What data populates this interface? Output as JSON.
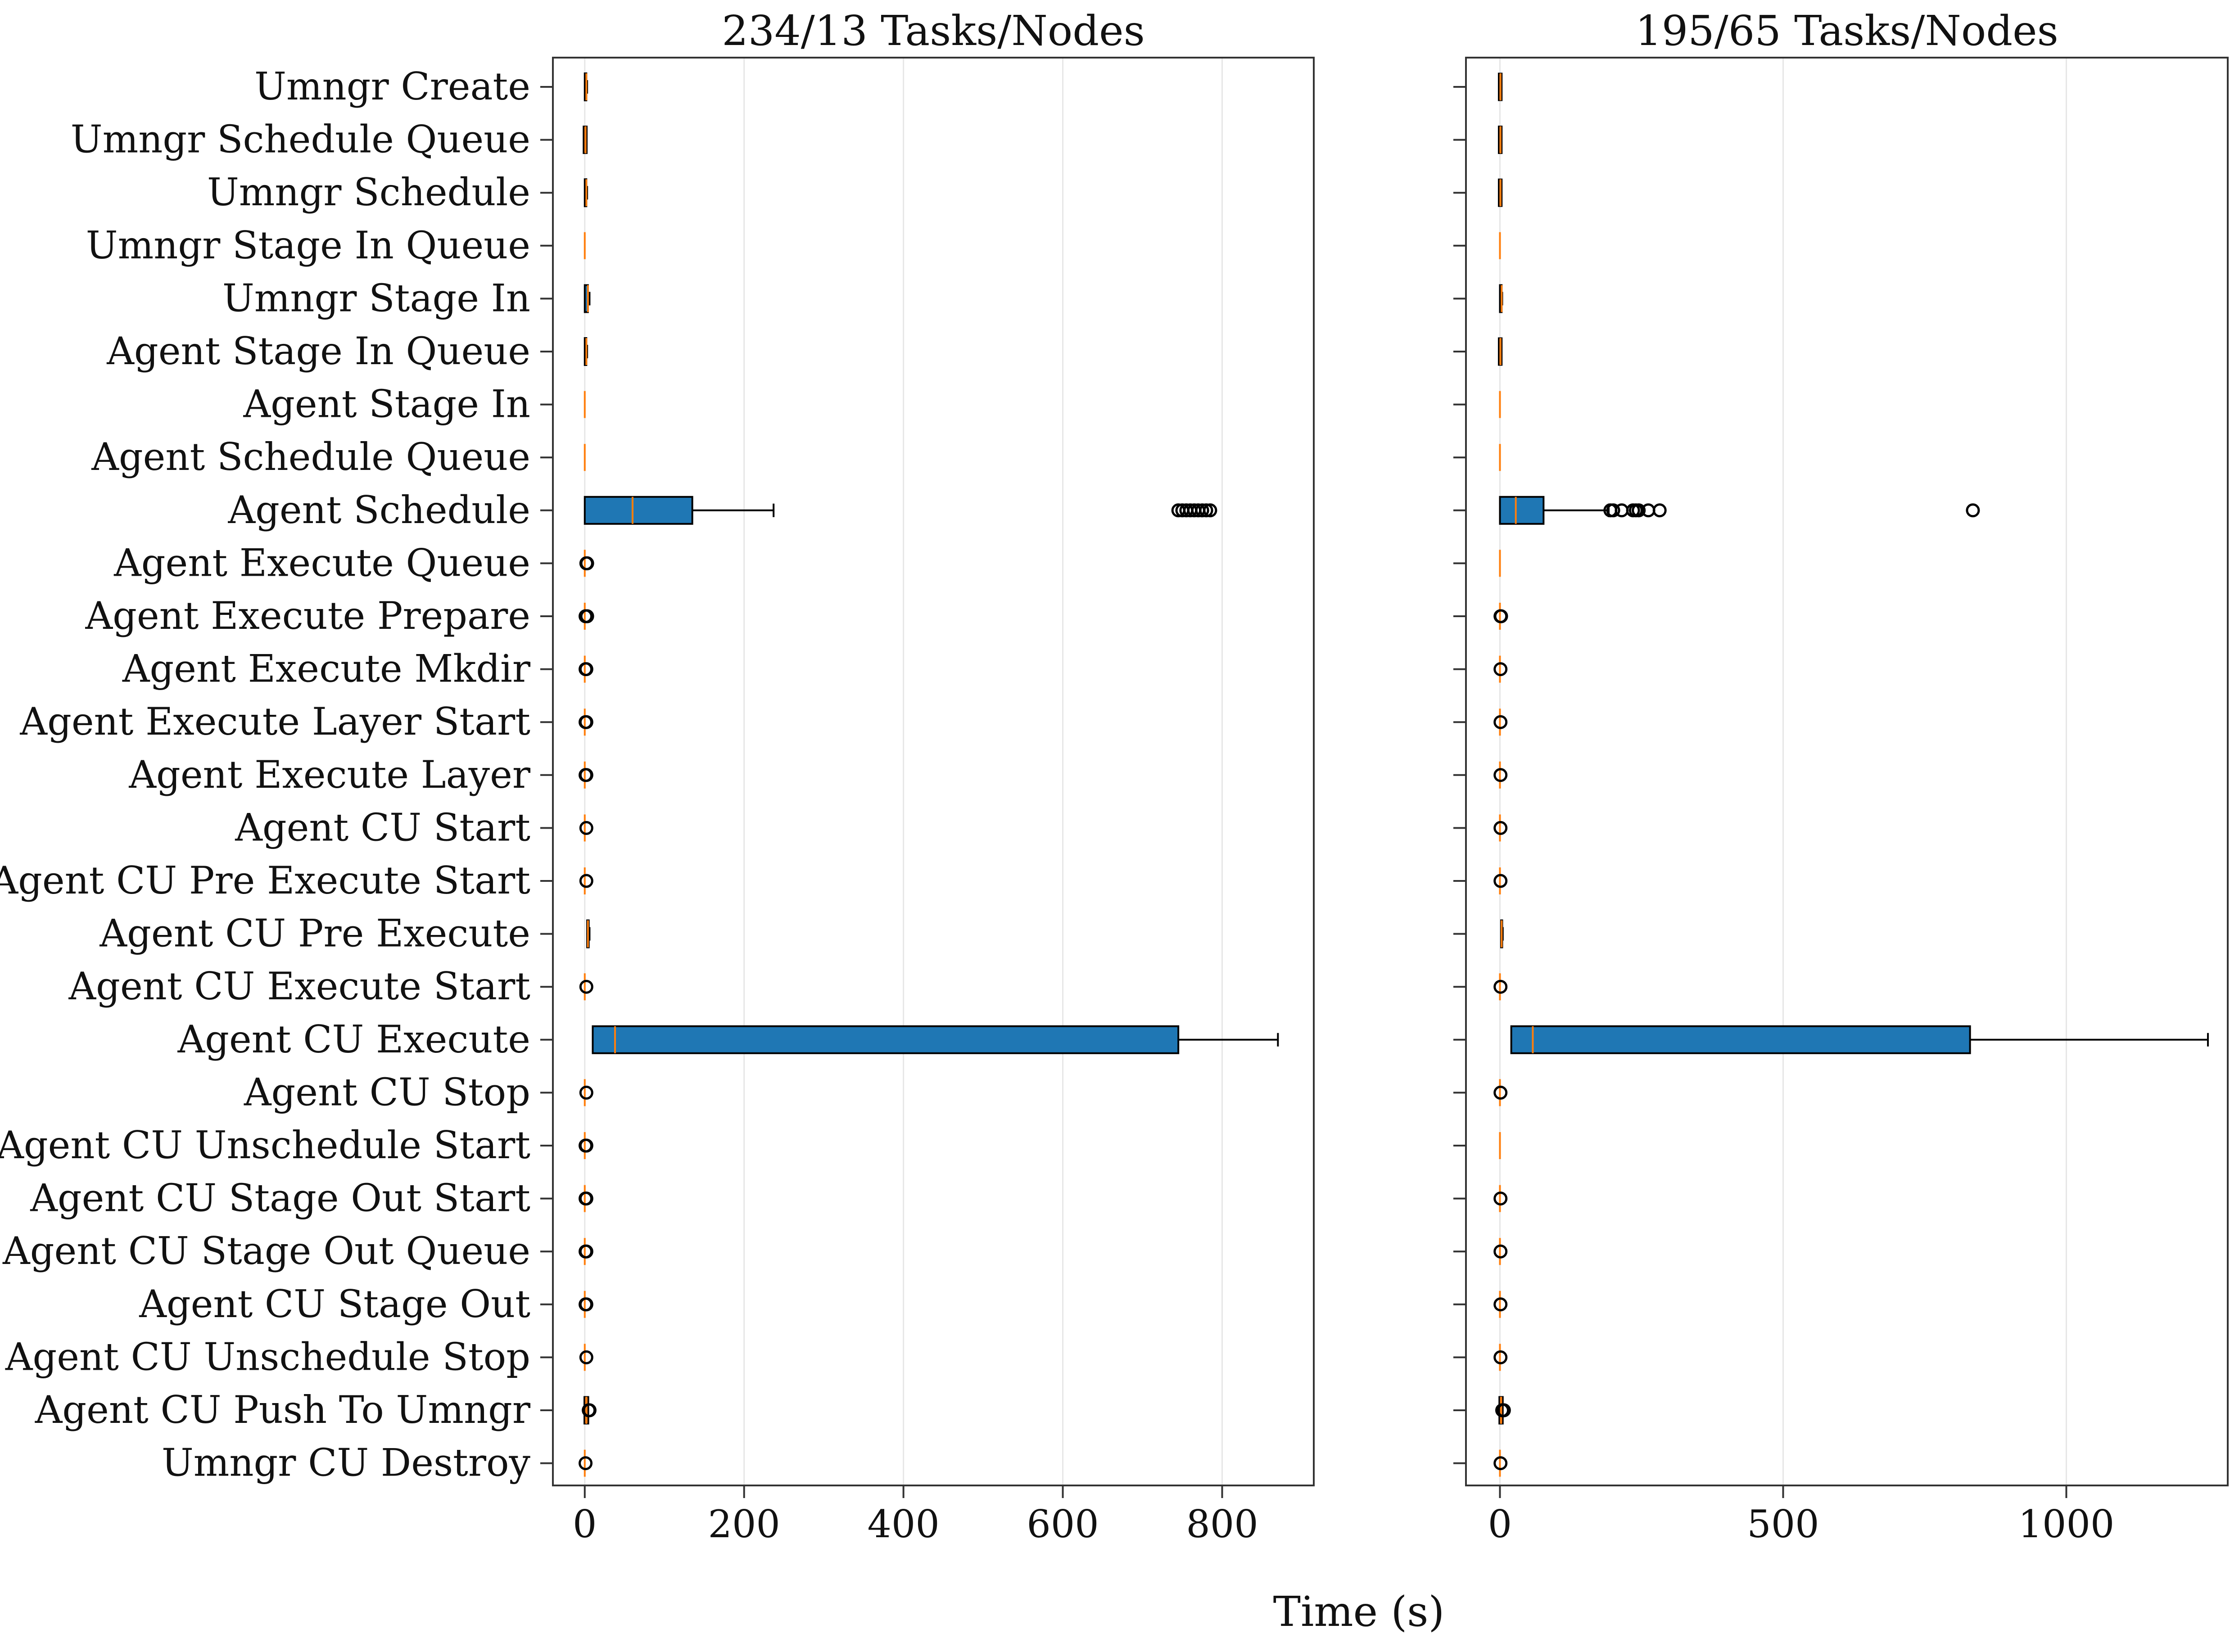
{
  "chart_data": {
    "type": "boxplot",
    "xlabel": "Time (s)",
    "categories": [
      "Umngr Create",
      "Umngr Schedule Queue",
      "Umngr Schedule",
      "Umngr Stage In Queue",
      "Umngr Stage In",
      "Agent Stage In Queue",
      "Agent Stage In",
      "Agent Schedule Queue",
      "Agent Schedule",
      "Agent Execute Queue",
      "Agent Execute Prepare",
      "Agent Execute Mkdir",
      "Agent Execute Layer Start",
      "Agent Execute Layer",
      "Agent CU Start",
      "Agent CU Pre Execute Start",
      "Agent CU Pre Execute",
      "Agent CU Execute Start",
      "Agent CU Execute",
      "Agent CU Stop",
      "Agent CU Unschedule Start",
      "Agent CU Stage Out Start",
      "Agent CU Stage Out Queue",
      "Agent CU Stage Out",
      "Agent CU Unschedule Stop",
      "Agent CU Push To Umngr",
      "Umngr CU Destroy"
    ],
    "colors": {
      "box": "#1f77b4",
      "median": "#ff7f0e",
      "grid": "#e6e6e6"
    },
    "grid": "vertical",
    "panels": [
      {
        "title": "234/13 Tasks/Nodes",
        "xlim": [
          -40,
          915
        ],
        "xticks": [
          0,
          200,
          400,
          600,
          800
        ],
        "boxes": [
          {
            "min": 0,
            "q1": 0,
            "median": 2,
            "q3": 2,
            "max": 3,
            "outliers": []
          },
          {
            "min": 0,
            "q1": 0,
            "median": 1,
            "q3": 1,
            "max": 1,
            "outliers": []
          },
          {
            "min": 0,
            "q1": 0,
            "median": 2,
            "q3": 2,
            "max": 3,
            "outliers": []
          },
          {
            "min": 0,
            "q1": 0,
            "median": 0,
            "q3": 0,
            "max": 0,
            "outliers": []
          },
          {
            "min": 0,
            "q1": 0,
            "median": 4,
            "q3": 4,
            "max": 6,
            "outliers": []
          },
          {
            "min": 0,
            "q1": 0,
            "median": 2,
            "q3": 2,
            "max": 3,
            "outliers": []
          },
          {
            "min": 0,
            "q1": 0,
            "median": 0,
            "q3": 0,
            "max": 0,
            "outliers": []
          },
          {
            "min": 0,
            "q1": 0,
            "median": 0,
            "q3": 0,
            "max": 0,
            "outliers": []
          },
          {
            "min": 0,
            "q1": 0,
            "median": 60,
            "q3": 135,
            "max": 237,
            "outliers": [
              745,
              750,
              755,
              760,
              765,
              770,
              775,
              780,
              785
            ]
          },
          {
            "min": 0,
            "q1": 0,
            "median": 0,
            "q3": 0,
            "max": 0,
            "outliers": [
              2,
              3
            ]
          },
          {
            "min": 0,
            "q1": 0,
            "median": 0,
            "q3": 0,
            "max": 0,
            "outliers": [
              1,
              2,
              3
            ]
          },
          {
            "min": 0,
            "q1": 0,
            "median": 0,
            "q3": 0,
            "max": 0,
            "outliers": [
              1,
              2
            ]
          },
          {
            "min": 0,
            "q1": 0,
            "median": 0,
            "q3": 0,
            "max": 0,
            "outliers": [
              1,
              2
            ]
          },
          {
            "min": 0,
            "q1": 0,
            "median": 0,
            "q3": 0,
            "max": 0,
            "outliers": [
              1,
              2
            ]
          },
          {
            "min": 0,
            "q1": 0,
            "median": 0,
            "q3": 0,
            "max": 0,
            "outliers": [
              2
            ]
          },
          {
            "min": 0,
            "q1": 0,
            "median": 0,
            "q3": 0,
            "max": 0,
            "outliers": [
              2
            ]
          },
          {
            "min": 2,
            "q1": 3,
            "median": 4,
            "q3": 5,
            "max": 6,
            "outliers": []
          },
          {
            "min": 0,
            "q1": 0,
            "median": 0,
            "q3": 0,
            "max": 0,
            "outliers": [
              2
            ]
          },
          {
            "min": 10,
            "q1": 10,
            "median": 38,
            "q3": 745,
            "max": 870,
            "outliers": []
          },
          {
            "min": 0,
            "q1": 0,
            "median": 0,
            "q3": 0,
            "max": 0,
            "outliers": [
              2
            ]
          },
          {
            "min": 0,
            "q1": 0,
            "median": 0,
            "q3": 0,
            "max": 0,
            "outliers": [
              1,
              2
            ]
          },
          {
            "min": 0,
            "q1": 0,
            "median": 0,
            "q3": 0,
            "max": 0,
            "outliers": [
              1,
              2
            ]
          },
          {
            "min": 0,
            "q1": 0,
            "median": 0,
            "q3": 0,
            "max": 0,
            "outliers": [
              1,
              2
            ]
          },
          {
            "min": 0,
            "q1": 0,
            "median": 0,
            "q3": 0,
            "max": 0,
            "outliers": [
              1,
              2
            ]
          },
          {
            "min": 0,
            "q1": 0,
            "median": 0,
            "q3": 0,
            "max": 0,
            "outliers": [
              2
            ]
          },
          {
            "min": 1,
            "q1": 1,
            "median": 2,
            "q3": 2,
            "max": 3,
            "outliers": [
              5,
              6
            ]
          },
          {
            "min": 0,
            "q1": 0,
            "median": 0,
            "q3": 0,
            "max": 0,
            "outliers": [
              1
            ]
          }
        ]
      },
      {
        "title": "195/65 Tasks/Nodes",
        "xlim": [
          -60,
          1285
        ],
        "xticks": [
          0,
          500,
          1000
        ],
        "boxes": [
          {
            "min": 0,
            "q1": 0,
            "median": 1,
            "q3": 1,
            "max": 1,
            "outliers": []
          },
          {
            "min": 0,
            "q1": 0,
            "median": 1,
            "q3": 1,
            "max": 1,
            "outliers": []
          },
          {
            "min": 0,
            "q1": 0,
            "median": 1,
            "q3": 1,
            "max": 1,
            "outliers": []
          },
          {
            "min": 0,
            "q1": 0,
            "median": 0,
            "q3": 0,
            "max": 0,
            "outliers": []
          },
          {
            "min": 0,
            "q1": 0,
            "median": 3,
            "q3": 3,
            "max": 4,
            "outliers": []
          },
          {
            "min": 0,
            "q1": 0,
            "median": 1,
            "q3": 1,
            "max": 1,
            "outliers": []
          },
          {
            "min": 0,
            "q1": 0,
            "median": 0,
            "q3": 0,
            "max": 0,
            "outliers": []
          },
          {
            "min": 0,
            "q1": 0,
            "median": 0,
            "q3": 0,
            "max": 0,
            "outliers": []
          },
          {
            "min": 0,
            "q1": 0,
            "median": 28,
            "q3": 77,
            "max": 192,
            "outliers": [
              195,
              200,
              215,
              235,
              240,
              245,
              262,
              282,
              835
            ]
          },
          {
            "min": 0,
            "q1": 0,
            "median": 0,
            "q3": 0,
            "max": 0,
            "outliers": []
          },
          {
            "min": 0,
            "q1": 0,
            "median": 0,
            "q3": 0,
            "max": 0,
            "outliers": [
              1,
              2
            ]
          },
          {
            "min": 0,
            "q1": 0,
            "median": 0,
            "q3": 0,
            "max": 0,
            "outliers": [
              1
            ]
          },
          {
            "min": 0,
            "q1": 0,
            "median": 0,
            "q3": 0,
            "max": 0,
            "outliers": [
              1
            ]
          },
          {
            "min": 0,
            "q1": 0,
            "median": 0,
            "q3": 0,
            "max": 0,
            "outliers": [
              1
            ]
          },
          {
            "min": 0,
            "q1": 0,
            "median": 0,
            "q3": 0,
            "max": 0,
            "outliers": [
              1
            ]
          },
          {
            "min": 0,
            "q1": 0,
            "median": 0,
            "q3": 0,
            "max": 0,
            "outliers": [
              1
            ]
          },
          {
            "min": 1,
            "q1": 2,
            "median": 3,
            "q3": 4,
            "max": 5,
            "outliers": []
          },
          {
            "min": 0,
            "q1": 0,
            "median": 0,
            "q3": 0,
            "max": 0,
            "outliers": [
              1
            ]
          },
          {
            "min": 20,
            "q1": 20,
            "median": 58,
            "q3": 830,
            "max": 1250,
            "outliers": []
          },
          {
            "min": 0,
            "q1": 0,
            "median": 0,
            "q3": 0,
            "max": 0,
            "outliers": [
              1
            ]
          },
          {
            "min": 0,
            "q1": 0,
            "median": 0,
            "q3": 0,
            "max": 0,
            "outliers": []
          },
          {
            "min": 0,
            "q1": 0,
            "median": 0,
            "q3": 0,
            "max": 0,
            "outliers": [
              1
            ]
          },
          {
            "min": 0,
            "q1": 0,
            "median": 0,
            "q3": 0,
            "max": 0,
            "outliers": [
              1
            ]
          },
          {
            "min": 0,
            "q1": 0,
            "median": 0,
            "q3": 0,
            "max": 0,
            "outliers": [
              1
            ]
          },
          {
            "min": 0,
            "q1": 0,
            "median": 0,
            "q3": 0,
            "max": 0,
            "outliers": [
              1
            ]
          },
          {
            "min": 1,
            "q1": 1,
            "median": 2,
            "q3": 2,
            "max": 3,
            "outliers": [
              4,
              5,
              6,
              7
            ]
          },
          {
            "min": 0,
            "q1": 0,
            "median": 0,
            "q3": 0,
            "max": 0,
            "outliers": [
              1
            ]
          }
        ]
      }
    ]
  }
}
